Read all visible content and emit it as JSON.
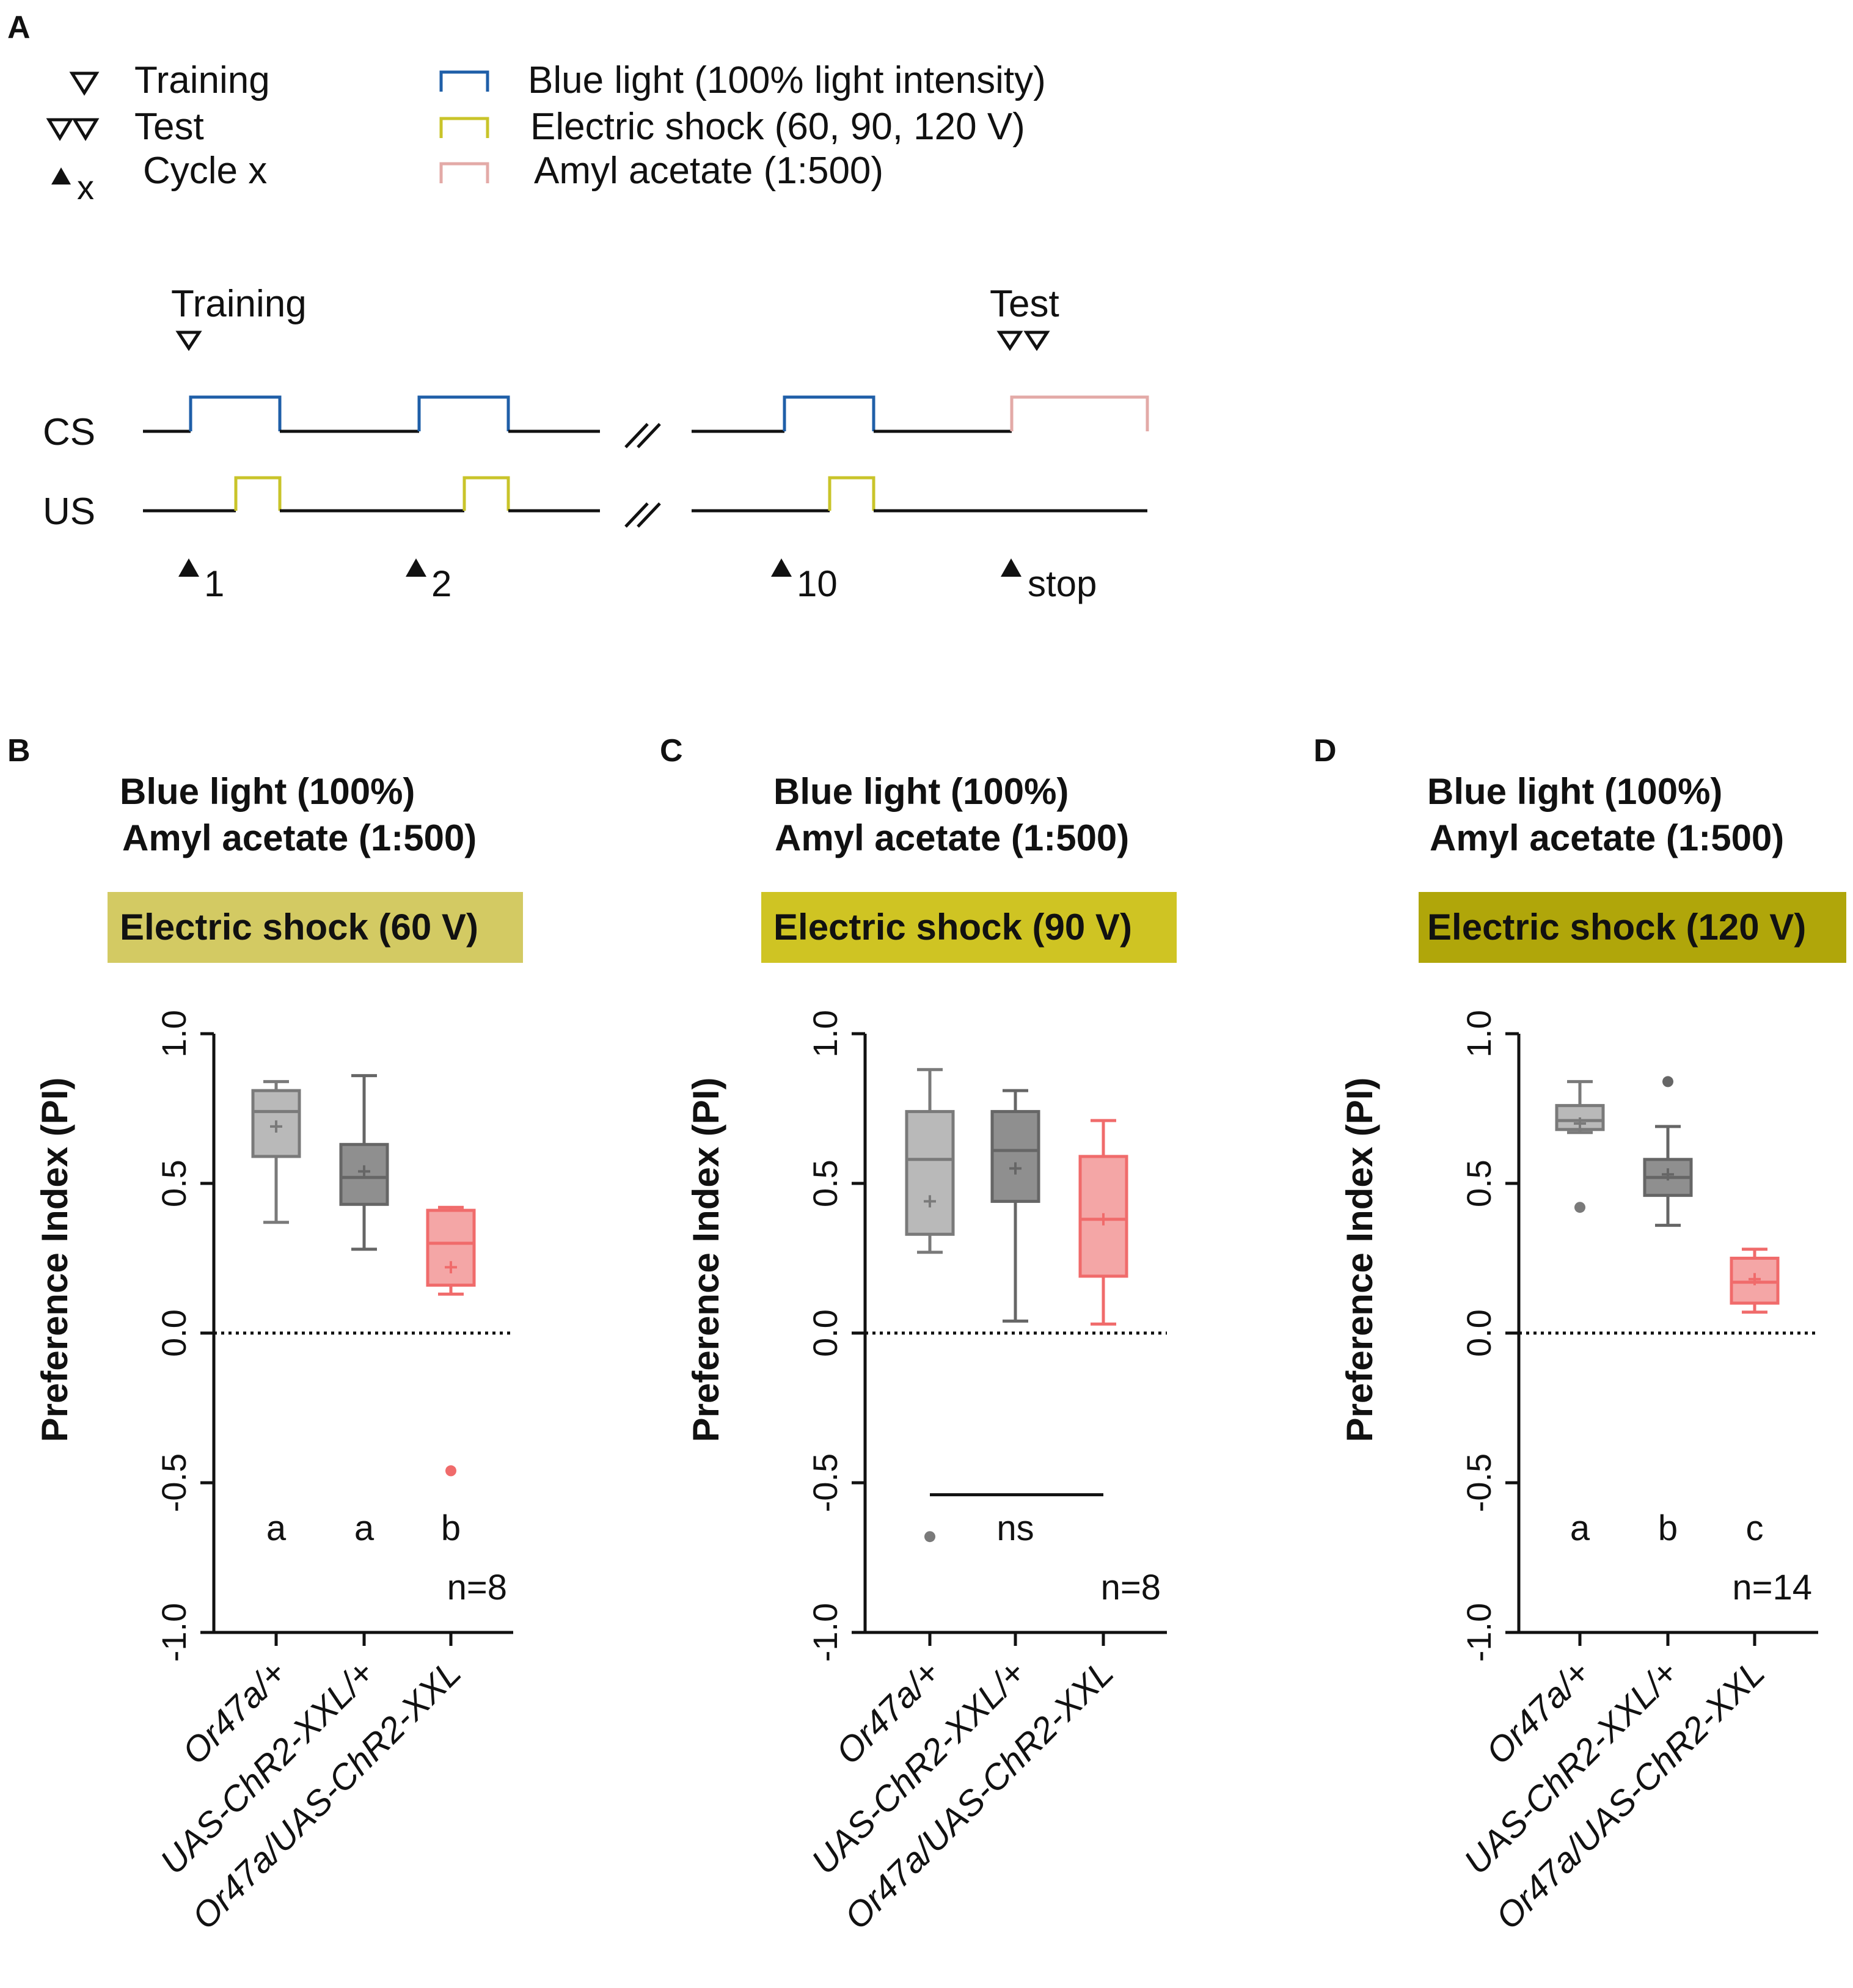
{
  "panel_labels": {
    "A": "A",
    "B": "B",
    "C": "C",
    "D": "D"
  },
  "legend": {
    "training": "Training",
    "test": "Test",
    "cycle": "Cycle x",
    "cycle_marker": "x",
    "blue_light": "Blue light (100% light intensity)",
    "electric_shock": "Electric shock (60, 90, 120 V)",
    "amyl_acetate": "Amyl acetate (1:500)"
  },
  "protocol": {
    "training_label": "Training",
    "test_label": "Test",
    "cs_label": "CS",
    "us_label": "US",
    "cycle_labels": [
      "1",
      "2",
      "10",
      "stop"
    ]
  },
  "colors": {
    "blue_light": "#1f5fa8",
    "electric_shock": "#c9c42a",
    "amyl_acetate": "#e3aaa7",
    "header_60": "#d3ca63",
    "header_90": "#cfc423",
    "header_120": "#b0a60a",
    "box_light_gray": "#b9b9b9",
    "box_dark_gray": "#8f8f8f",
    "box_red": "#f4a6a6",
    "red": "#f06b6b",
    "gray_line": "#7a7a7a"
  },
  "chart_data": [
    {
      "panel": "B",
      "type": "box",
      "title_line1": "Blue light (100%)",
      "title_line2": "Amyl acetate (1:500)",
      "header": "Electric shock (60 V)",
      "ylabel": "Preference Index (PI)",
      "ylim": [
        -1.0,
        1.0
      ],
      "yticks": [
        "-1.0",
        "-0.5",
        "0.0",
        "0.5",
        "1.0"
      ],
      "categories": [
        "Or47a/+",
        "UAS-ChR2-XXL/+",
        "Or47a/UAS-ChR2-XXL"
      ],
      "boxes": [
        {
          "min": 0.37,
          "q1": 0.59,
          "median": 0.74,
          "q3": 0.81,
          "max": 0.84,
          "mean": 0.69,
          "outliers": []
        },
        {
          "min": 0.28,
          "q1": 0.43,
          "median": 0.52,
          "q3": 0.63,
          "max": 0.86,
          "mean": 0.54,
          "outliers": []
        },
        {
          "min": 0.13,
          "q1": 0.16,
          "median": 0.3,
          "q3": 0.41,
          "max": 0.42,
          "mean": 0.22,
          "outliers": [
            -0.46
          ]
        }
      ],
      "significance": [
        "a",
        "a",
        "b"
      ],
      "n_label": "n=8"
    },
    {
      "panel": "C",
      "type": "box",
      "title_line1": "Blue light (100%)",
      "title_line2": "Amyl acetate (1:500)",
      "header": "Electric shock (90 V)",
      "ylabel": "Preference Index (PI)",
      "ylim": [
        -1.0,
        1.0
      ],
      "yticks": [
        "-1.0",
        "-0.5",
        "0.0",
        "0.5",
        "1.0"
      ],
      "categories": [
        "Or47a/+",
        "UAS-ChR2-XXL/+",
        "Or47a/UAS-ChR2-XXL"
      ],
      "boxes": [
        {
          "min": 0.27,
          "q1": 0.33,
          "median": 0.58,
          "q3": 0.74,
          "max": 0.88,
          "mean": 0.44,
          "outliers": [
            -0.68
          ]
        },
        {
          "min": 0.04,
          "q1": 0.44,
          "median": 0.61,
          "q3": 0.74,
          "max": 0.81,
          "mean": 0.55,
          "outliers": []
        },
        {
          "min": 0.03,
          "q1": 0.19,
          "median": 0.38,
          "q3": 0.59,
          "max": 0.71,
          "mean": 0.38,
          "outliers": []
        }
      ],
      "significance_bar": "ns",
      "n_label": "n=8"
    },
    {
      "panel": "D",
      "type": "box",
      "title_line1": "Blue light (100%)",
      "title_line2": "Amyl acetate (1:500)",
      "header": "Electric shock (120 V)",
      "ylabel": "Preference Index (PI)",
      "ylim": [
        -1.0,
        1.0
      ],
      "yticks": [
        "-1.0",
        "-0.5",
        "0.0",
        "0.5",
        "1.0"
      ],
      "categories": [
        "Or47a/+",
        "UAS-ChR2-XXL/+",
        "Or47a/UAS-ChR2-XXL"
      ],
      "boxes": [
        {
          "min": 0.67,
          "q1": 0.68,
          "median": 0.71,
          "q3": 0.76,
          "max": 0.84,
          "mean": 0.7,
          "outliers": [
            0.42
          ]
        },
        {
          "min": 0.36,
          "q1": 0.46,
          "median": 0.52,
          "q3": 0.58,
          "max": 0.69,
          "mean": 0.53,
          "outliers": [
            0.84
          ]
        },
        {
          "min": 0.07,
          "q1": 0.1,
          "median": 0.17,
          "q3": 0.25,
          "max": 0.28,
          "mean": 0.18,
          "outliers": []
        }
      ],
      "significance": [
        "a",
        "b",
        "c"
      ],
      "n_label": "n=14"
    }
  ]
}
